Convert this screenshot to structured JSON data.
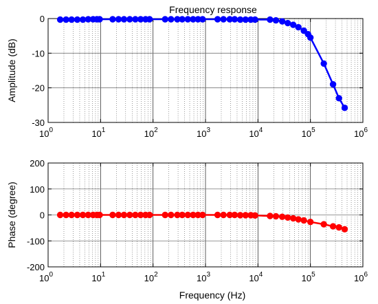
{
  "chart_data": [
    {
      "type": "line",
      "title": "Frequency response",
      "xlabel": "",
      "ylabel": "Amplitude (dB)",
      "xscale": "log",
      "xlim": [
        1,
        1000000
      ],
      "ylim": [
        -30,
        0
      ],
      "grid": true,
      "x_ticks": [
        "10",
        "10",
        "10",
        "10",
        "10",
        "10",
        "10"
      ],
      "x_tick_exponents": [
        "0",
        "1",
        "2",
        "3",
        "4",
        "5",
        "6"
      ],
      "y_ticks": [
        "0",
        "-10",
        "-20",
        "-30"
      ],
      "series": [
        {
          "color": "#0000ff",
          "points": [
            [
              1.7,
              -0.3
            ],
            [
              2.2,
              -0.3
            ],
            [
              2.8,
              -0.3
            ],
            [
              3.6,
              -0.3
            ],
            [
              4.6,
              -0.3
            ],
            [
              5.8,
              -0.2
            ],
            [
              7.2,
              -0.2
            ],
            [
              8.5,
              -0.2
            ],
            [
              9.6,
              -0.2
            ],
            [
              17,
              -0.2
            ],
            [
              22,
              -0.2
            ],
            [
              28,
              -0.2
            ],
            [
              36,
              -0.2
            ],
            [
              46,
              -0.2
            ],
            [
              58,
              -0.2
            ],
            [
              72,
              -0.2
            ],
            [
              86,
              -0.2
            ],
            [
              170,
              -0.2
            ],
            [
              220,
              -0.2
            ],
            [
              290,
              -0.2
            ],
            [
              360,
              -0.2
            ],
            [
              460,
              -0.2
            ],
            [
              580,
              -0.2
            ],
            [
              720,
              -0.2
            ],
            [
              880,
              -0.2
            ],
            [
              1700,
              -0.2
            ],
            [
              2200,
              -0.2
            ],
            [
              2900,
              -0.2
            ],
            [
              3600,
              -0.2
            ],
            [
              4600,
              -0.3
            ],
            [
              5800,
              -0.3
            ],
            [
              7300,
              -0.3
            ],
            [
              8800,
              -0.3
            ],
            [
              17000,
              -0.3
            ],
            [
              22000,
              -0.5
            ],
            [
              29000,
              -0.8
            ],
            [
              37000,
              -1.3
            ],
            [
              47000,
              -1.8
            ],
            [
              59000,
              -2.5
            ],
            [
              75000,
              -3.5
            ],
            [
              90000,
              -4.5
            ],
            [
              100000,
              -5.5
            ],
            [
              180000,
              -13.0
            ],
            [
              270000,
              -19.0
            ],
            [
              350000,
              -23.0
            ],
            [
              450000,
              -25.8
            ]
          ]
        }
      ]
    },
    {
      "type": "line",
      "title": "",
      "xlabel": "Frequency (Hz)",
      "ylabel": "Phase (degree)",
      "xscale": "log",
      "xlim": [
        1,
        1000000
      ],
      "ylim": [
        -200,
        200
      ],
      "grid": true,
      "x_ticks": [
        "10",
        "10",
        "10",
        "10",
        "10",
        "10",
        "10"
      ],
      "x_tick_exponents": [
        "0",
        "1",
        "2",
        "3",
        "4",
        "5",
        "6"
      ],
      "y_ticks": [
        "200",
        "100",
        "0",
        "-100",
        "-200"
      ],
      "series": [
        {
          "color": "#ff0000",
          "points": [
            [
              1.7,
              0
            ],
            [
              2.2,
              0
            ],
            [
              2.8,
              0
            ],
            [
              3.6,
              0
            ],
            [
              4.6,
              0
            ],
            [
              5.8,
              0
            ],
            [
              7.2,
              0
            ],
            [
              8.5,
              0
            ],
            [
              9.6,
              0
            ],
            [
              17,
              0
            ],
            [
              22,
              0
            ],
            [
              28,
              0
            ],
            [
              36,
              0
            ],
            [
              46,
              0
            ],
            [
              58,
              0
            ],
            [
              72,
              0
            ],
            [
              86,
              0
            ],
            [
              170,
              0
            ],
            [
              220,
              0
            ],
            [
              290,
              0
            ],
            [
              360,
              0
            ],
            [
              460,
              0
            ],
            [
              580,
              0
            ],
            [
              720,
              0
            ],
            [
              880,
              0
            ],
            [
              1700,
              0
            ],
            [
              2200,
              0
            ],
            [
              2900,
              0
            ],
            [
              3600,
              0
            ],
            [
              4600,
              -1
            ],
            [
              5800,
              -1
            ],
            [
              7300,
              -1
            ],
            [
              8800,
              -2
            ],
            [
              17000,
              -4
            ],
            [
              22000,
              -5
            ],
            [
              29000,
              -7
            ],
            [
              37000,
              -10
            ],
            [
              47000,
              -13
            ],
            [
              59000,
              -17
            ],
            [
              75000,
              -21
            ],
            [
              100000,
              -27
            ],
            [
              180000,
              -36
            ],
            [
              270000,
              -44
            ],
            [
              350000,
              -48
            ],
            [
              450000,
              -55
            ]
          ]
        }
      ]
    }
  ]
}
